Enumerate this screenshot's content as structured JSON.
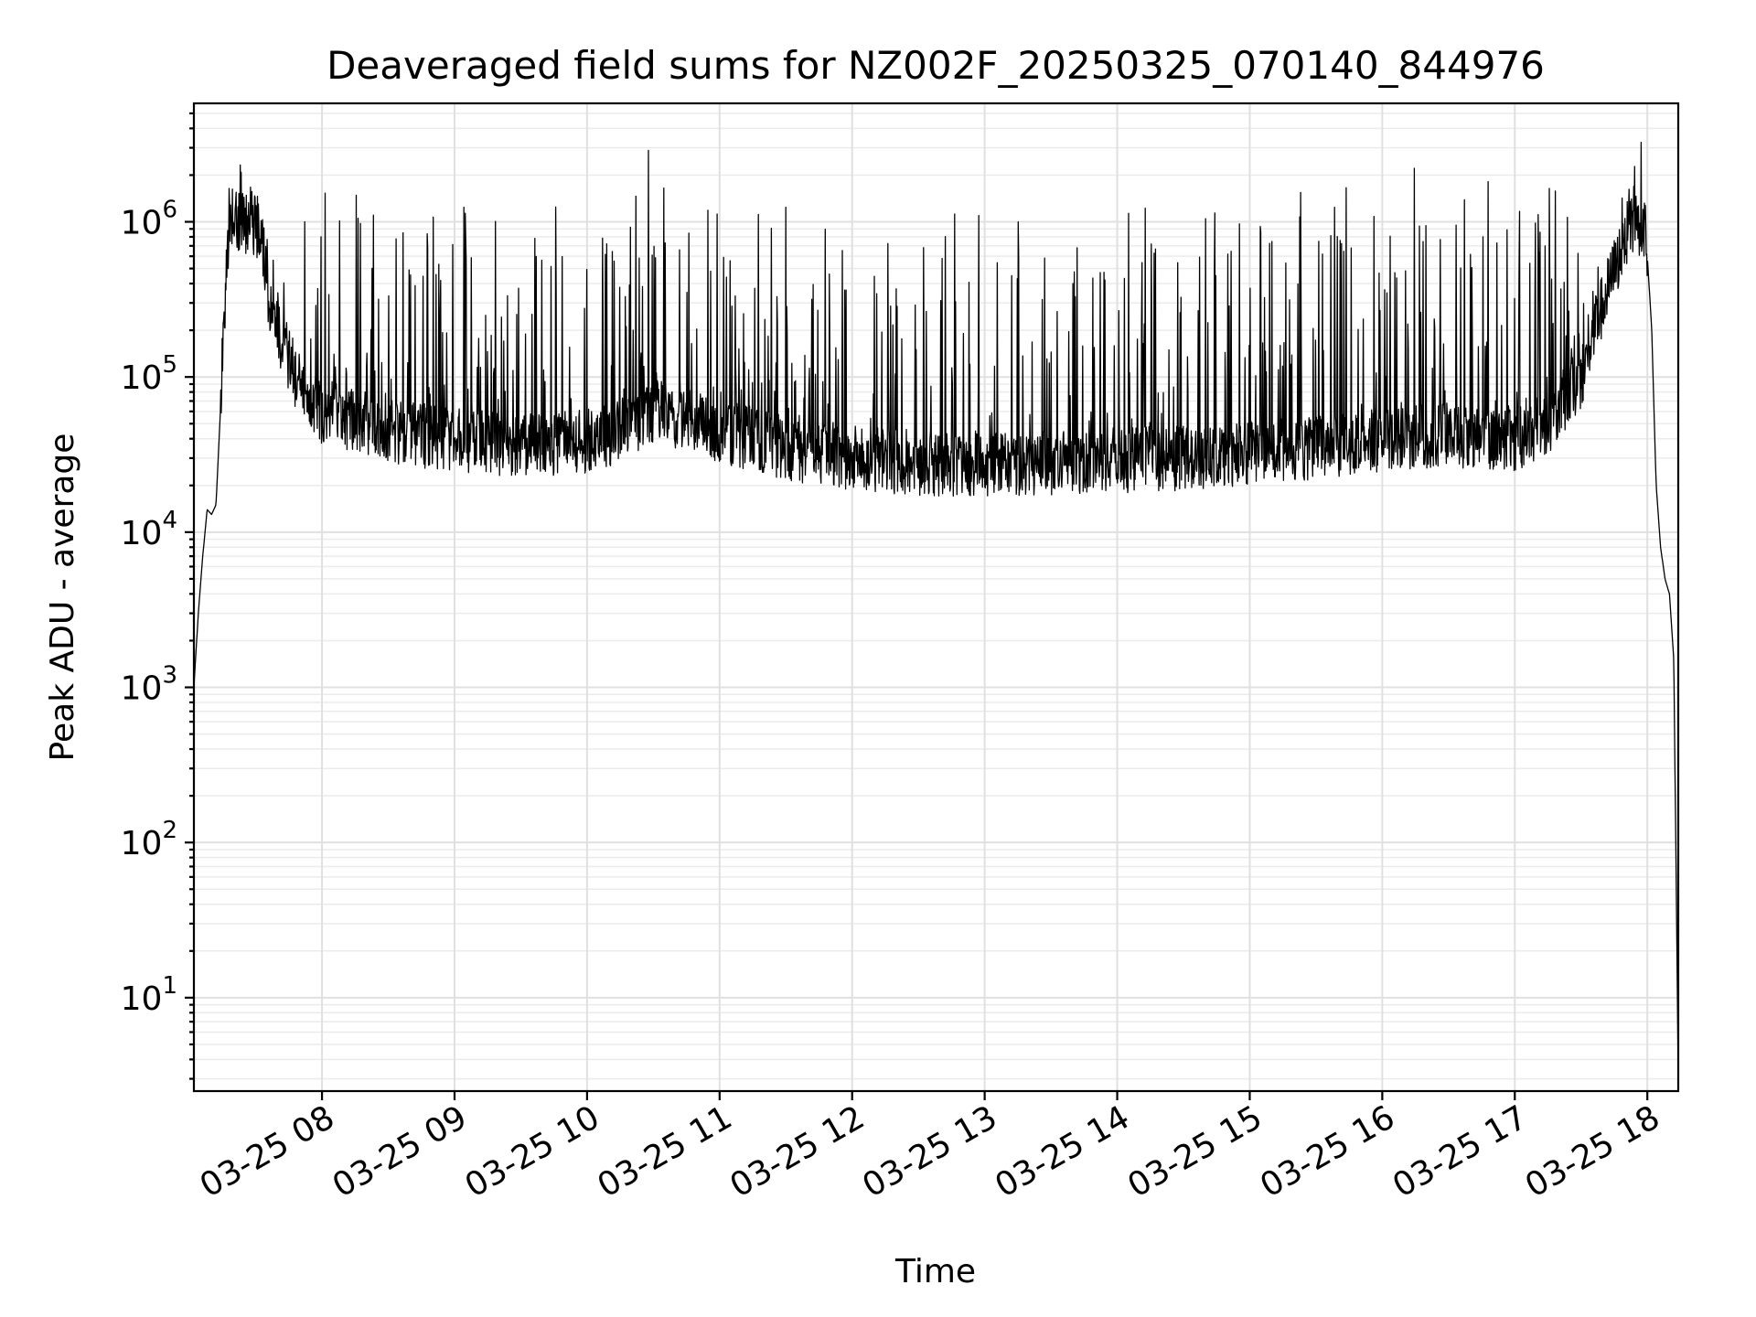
{
  "chart_data": {
    "type": "line",
    "title": "Deaveraged field sums for NZ002F_20250325_070140_844976",
    "xlabel": "Time",
    "ylabel": "Peak ADU - average",
    "yscale": "log",
    "grid": "major and minor",
    "legend": "none",
    "colors": {
      "line": "#000000",
      "grid": "#e0e0e0"
    },
    "xlim": [
      "2025-03-25 07:02",
      "2025-03-25 18:14"
    ],
    "ylim": [
      2.5,
      5800000
    ],
    "x_ticks": [
      {
        "value": "2025-03-25 08:00",
        "label": "03-25 08"
      },
      {
        "value": "2025-03-25 09:00",
        "label": "03-25 09"
      },
      {
        "value": "2025-03-25 10:00",
        "label": "03-25 10"
      },
      {
        "value": "2025-03-25 11:00",
        "label": "03-25 11"
      },
      {
        "value": "2025-03-25 12:00",
        "label": "03-25 12"
      },
      {
        "value": "2025-03-25 13:00",
        "label": "03-25 13"
      },
      {
        "value": "2025-03-25 14:00",
        "label": "03-25 14"
      },
      {
        "value": "2025-03-25 15:00",
        "label": "03-25 15"
      },
      {
        "value": "2025-03-25 16:00",
        "label": "03-25 16"
      },
      {
        "value": "2025-03-25 17:00",
        "label": "03-25 17"
      },
      {
        "value": "2025-03-25 18:00",
        "label": "03-25 18"
      }
    ],
    "y_ticks": [
      {
        "value": 10,
        "base": "10",
        "exp": "1"
      },
      {
        "value": 100,
        "base": "10",
        "exp": "2"
      },
      {
        "value": 1000,
        "base": "10",
        "exp": "3"
      },
      {
        "value": 10000,
        "base": "10",
        "exp": "4"
      },
      {
        "value": 100000,
        "base": "10",
        "exp": "5"
      },
      {
        "value": 1000000,
        "base": "10",
        "exp": "6"
      }
    ],
    "series": [
      {
        "x": [
          "2025-03-25 07:02",
          "2025-03-25 07:04",
          "2025-03-25 07:06",
          "2025-03-25 07:08",
          "2025-03-25 07:10",
          "2025-03-25 07:12",
          "2025-03-25 07:14",
          "2025-03-25 07:16",
          "2025-03-25 07:18",
          "2025-03-25 07:20",
          "2025-03-25 07:23",
          "2025-03-25 07:26",
          "2025-03-25 07:29",
          "2025-03-25 07:32",
          "2025-03-25 07:35",
          "2025-03-25 07:38",
          "2025-03-25 07:41",
          "2025-03-25 07:44",
          "2025-03-25 07:47",
          "2025-03-25 07:50",
          "2025-03-25 07:55",
          "2025-03-25 08:00",
          "2025-03-25 08:10",
          "2025-03-25 08:20",
          "2025-03-25 08:30",
          "2025-03-25 08:45",
          "2025-03-25 09:00",
          "2025-03-25 09:15",
          "2025-03-25 09:30",
          "2025-03-25 09:45",
          "2025-03-25 10:00",
          "2025-03-25 10:15",
          "2025-03-25 10:30",
          "2025-03-25 10:45",
          "2025-03-25 11:00",
          "2025-03-25 11:30",
          "2025-03-25 12:00",
          "2025-03-25 12:30",
          "2025-03-25 13:00",
          "2025-03-25 13:30",
          "2025-03-25 14:00",
          "2025-03-25 14:30",
          "2025-03-25 15:00",
          "2025-03-25 15:30",
          "2025-03-25 16:00",
          "2025-03-25 16:30",
          "2025-03-25 17:00",
          "2025-03-25 17:15",
          "2025-03-25 17:30",
          "2025-03-25 17:40",
          "2025-03-25 17:50",
          "2025-03-25 17:55",
          "2025-03-25 17:59",
          "2025-03-25 18:00",
          "2025-03-25 18:02",
          "2025-03-25 18:04",
          "2025-03-25 18:06",
          "2025-03-25 18:08",
          "2025-03-25 18:10",
          "2025-03-25 18:12",
          "2025-03-25 18:14"
        ],
        "y": [
          1000,
          3000,
          7000,
          14000,
          13000,
          15000,
          60000,
          300000,
          800000,
          1100000,
          1000000,
          900000,
          1000000,
          900000,
          400000,
          250000,
          180000,
          140000,
          110000,
          90000,
          70000,
          60000,
          55000,
          50000,
          45000,
          42000,
          40000,
          38000,
          36000,
          37000,
          38000,
          45000,
          60000,
          55000,
          45000,
          35000,
          30000,
          28000,
          27000,
          28000,
          29000,
          30000,
          32000,
          35000,
          40000,
          42000,
          40000,
          50000,
          100000,
          300000,
          800000,
          1000000,
          900000,
          600000,
          200000,
          20000,
          8000,
          5000,
          4000,
          1500,
          3
        ]
      }
    ]
  }
}
